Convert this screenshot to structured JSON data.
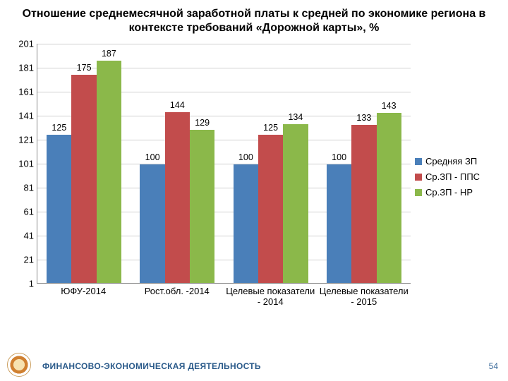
{
  "title": "Отношение среднемесячной заработной платы к средней по экономике региона в контексте требований «Дорожной карты», %",
  "chart": {
    "type": "bar",
    "ylim": [
      1,
      201
    ],
    "ytick_step": 20,
    "yticks": [
      1,
      21,
      41,
      61,
      81,
      101,
      121,
      141,
      161,
      181,
      201
    ],
    "grid_color": "#d0d0d0",
    "axis_color": "#888888",
    "background_color": "#ffffff",
    "categories": [
      "ЮФУ-2014",
      "Рост.обл. -2014",
      "Целевые показатели - 2014",
      "Целевые показатели - 2015"
    ],
    "series": [
      {
        "name": "Средняя ЗП",
        "color": "#4a7fb9",
        "values": [
          125,
          100,
          100,
          100
        ]
      },
      {
        "name": "Ср.ЗП - ППС",
        "color": "#c24c4c",
        "values": [
          175,
          144,
          125,
          133
        ]
      },
      {
        "name": "Ср.ЗП - НР",
        "color": "#8bb84a",
        "values": [
          187,
          129,
          134,
          143
        ]
      }
    ],
    "label_fontsize": 13,
    "title_fontsize": 16,
    "bar_group_width": 0.8
  },
  "footer": {
    "section": "ФИНАНСОВО-ЭКОНОМИЧЕСКАЯ ДЕЯТЕЛЬНОСТЬ",
    "page": "54"
  }
}
